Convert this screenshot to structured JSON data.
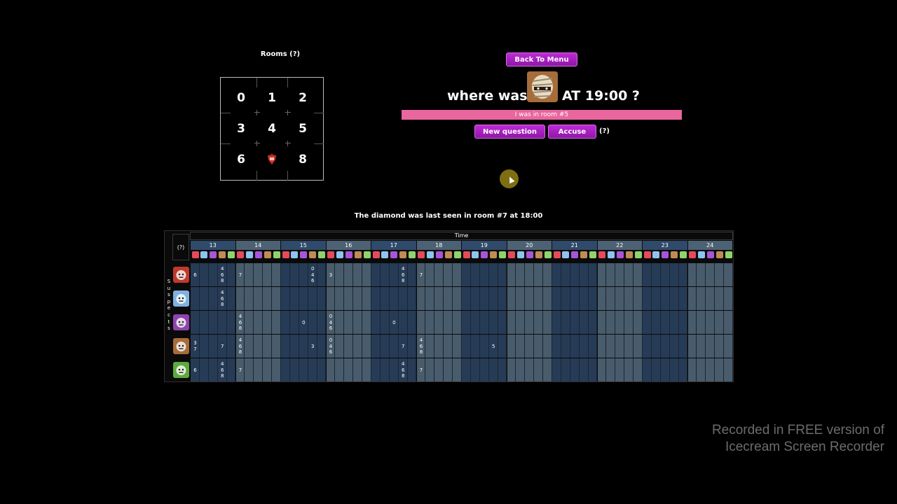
{
  "rooms": {
    "title": "Rooms (?)",
    "cells": [
      "0",
      "1",
      "2",
      "3",
      "4",
      "5",
      "6",
      "",
      "8"
    ],
    "diamond_room_icon": "diamond-suspect-icon"
  },
  "buttons": {
    "back": "Back To Menu",
    "new_question": "New question",
    "accuse": "Accuse",
    "accuse_help": "(?)"
  },
  "question": {
    "prefix": "where was",
    "suffix": "AT 19:00 ?",
    "suspect_icon": "mummy-icon",
    "answer": "I was in room #5"
  },
  "status": {
    "diamond": "The diamond was last seen in room #7 at 18:00"
  },
  "table": {
    "help": "(?)",
    "time_label": "Time",
    "suspects_label": "Suspects",
    "hours": [
      "13",
      "14",
      "15",
      "16",
      "17",
      "18",
      "19",
      "20",
      "21",
      "22",
      "23",
      "24"
    ],
    "suspects": [
      {
        "icon": "red-witch-icon",
        "color": "#c0392b"
      },
      {
        "icon": "blue-ghost-icon",
        "color": "#7fb2e0"
      },
      {
        "icon": "purple-woman-icon",
        "color": "#8e44ad"
      },
      {
        "icon": "mummy-icon",
        "color": "#a66c3a"
      },
      {
        "icon": "green-goblin-icon",
        "color": "#5faa3c"
      }
    ],
    "entries": [
      {
        "row": 0,
        "col": 0,
        "text": "6"
      },
      {
        "row": 0,
        "col": 3,
        "text": "4\n6\n8"
      },
      {
        "row": 0,
        "col": 5,
        "text": "7"
      },
      {
        "row": 0,
        "col": 13,
        "text": "0\n4\n6"
      },
      {
        "row": 0,
        "col": 15,
        "text": "3"
      },
      {
        "row": 0,
        "col": 23,
        "text": "4\n6\n8"
      },
      {
        "row": 0,
        "col": 25,
        "text": "7"
      },
      {
        "row": 1,
        "col": 3,
        "text": "4\n6\n8"
      },
      {
        "row": 2,
        "col": 5,
        "text": "4\n6\n8"
      },
      {
        "row": 2,
        "col": 12,
        "text": "0"
      },
      {
        "row": 2,
        "col": 15,
        "text": "0\n4\n6"
      },
      {
        "row": 2,
        "col": 22,
        "text": "0"
      },
      {
        "row": 3,
        "col": 0,
        "text": "3\n7"
      },
      {
        "row": 3,
        "col": 3,
        "text": "7"
      },
      {
        "row": 3,
        "col": 5,
        "text": "4\n6\n8"
      },
      {
        "row": 3,
        "col": 13,
        "text": "3"
      },
      {
        "row": 3,
        "col": 15,
        "text": "0\n4\n6"
      },
      {
        "row": 3,
        "col": 23,
        "text": "7"
      },
      {
        "row": 3,
        "col": 25,
        "text": "4\n6\n8"
      },
      {
        "row": 3,
        "col": 33,
        "text": "5"
      },
      {
        "row": 4,
        "col": 0,
        "text": "6"
      },
      {
        "row": 4,
        "col": 3,
        "text": "4\n6\n8"
      },
      {
        "row": 4,
        "col": 5,
        "text": "7"
      },
      {
        "row": 4,
        "col": 23,
        "text": "4\n6\n8"
      },
      {
        "row": 4,
        "col": 25,
        "text": "7"
      }
    ]
  },
  "watermark": {
    "line1": "Recorded in FREE version of",
    "line2": "Icecream   Screen   Recorder"
  }
}
